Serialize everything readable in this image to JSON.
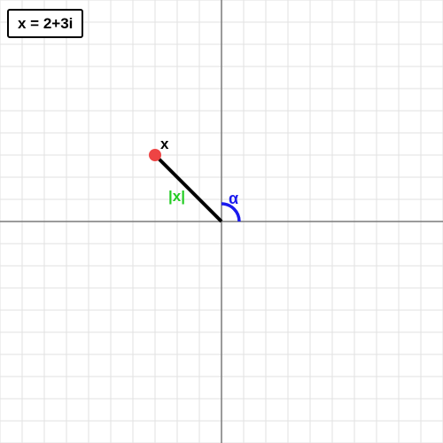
{
  "expression": "x = 2+3i",
  "point_label": "x",
  "modulus_label": "|x|",
  "angle_label": "α",
  "colors": {
    "grid": "#e2e2e2",
    "axis": "#7a7a7a",
    "vector": "#000000",
    "point": "#ee4444",
    "modulus": "#22cc22",
    "angle": "#1a1aee"
  }
}
